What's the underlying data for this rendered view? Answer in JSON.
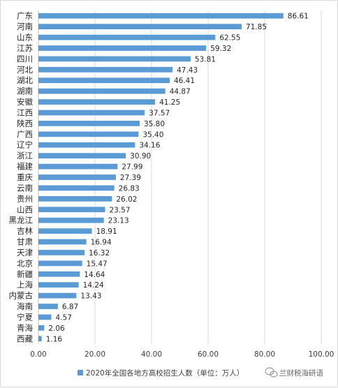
{
  "chart_data": {
    "type": "bar",
    "orientation": "horizontal",
    "categories": [
      "广东",
      "河南",
      "山东",
      "江苏",
      "四川",
      "河北",
      "湖北",
      "湖南",
      "安徽",
      "江西",
      "陕西",
      "广西",
      "辽宁",
      "浙江",
      "福建",
      "重庆",
      "云南",
      "贵州",
      "山西",
      "黑龙江",
      "吉林",
      "甘肃",
      "天津",
      "北京",
      "新疆",
      "上海",
      "内蒙古",
      "海南",
      "宁夏",
      "青海",
      "西藏"
    ],
    "series": [
      {
        "name": "2020年全国各地方高校招生人数（单位：万人）",
        "color": "#5b9bd5",
        "values": [
          86.61,
          71.85,
          62.55,
          59.32,
          53.81,
          47.43,
          46.41,
          44.87,
          41.25,
          37.57,
          35.8,
          35.4,
          34.16,
          30.9,
          27.99,
          27.39,
          26.83,
          26.02,
          23.57,
          23.13,
          18.91,
          16.94,
          16.32,
          15.47,
          14.64,
          14.24,
          13.43,
          6.87,
          4.57,
          2.06,
          1.16
        ]
      }
    ],
    "value_labels": [
      "86.61",
      "71.85",
      "62.55",
      "59.32",
      "53.81",
      "47.43",
      "46.41",
      "44.87",
      "41.25",
      "37.57",
      "35.80",
      "35.40",
      "34.16",
      "30.90",
      "27.99",
      "27.39",
      "26.83",
      "26.02",
      "23.57",
      "23.13",
      "18.91",
      "16.94",
      "16.32",
      "15.47",
      "14.64",
      "14.24",
      "13.43",
      "6.87",
      "4.57",
      "2.06",
      "1.16"
    ],
    "xlim": [
      0,
      100
    ],
    "xticks": [
      "0.00",
      "20.00",
      "40.00",
      "60.00",
      "80.00",
      "100.00"
    ],
    "grid": true,
    "legend_position": "bottom",
    "legend_label": "2020年全国各地方高校招生人数（单位：万人）"
  },
  "watermark": {
    "text": "兰财税海研语",
    "icon": "wechat-icon"
  }
}
